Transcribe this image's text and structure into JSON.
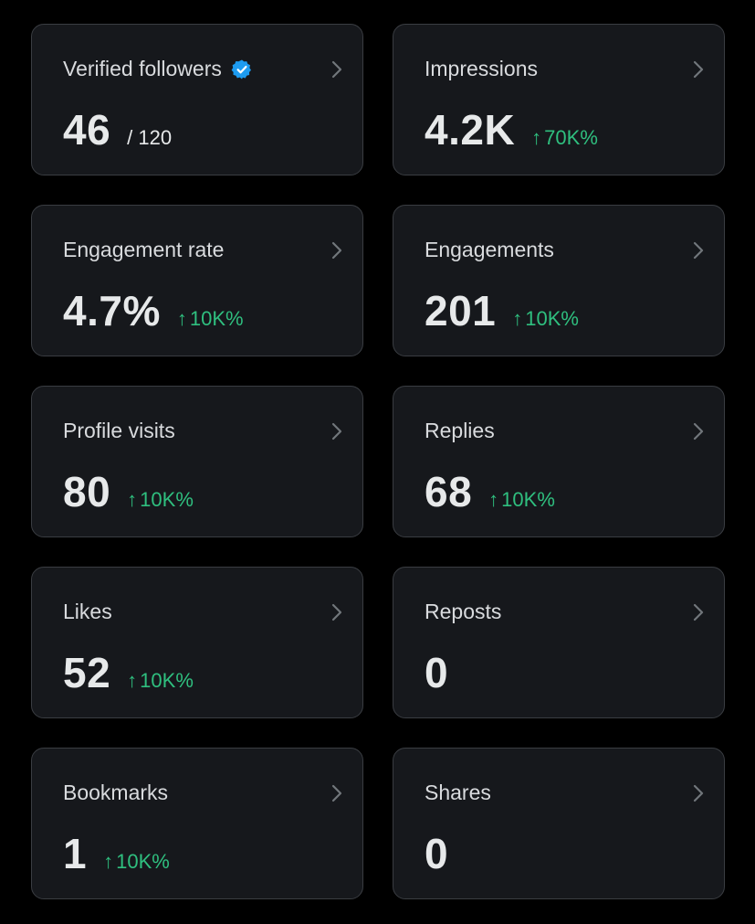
{
  "colors": {
    "background": "#000000",
    "card": "#16181c",
    "card_border": "#3a3d42",
    "text_primary": "#e7e9ea",
    "text_secondary": "#d9dbde",
    "positive": "#2fbf7f",
    "verified": "#1d9bf0"
  },
  "cards": [
    {
      "id": "verified-followers",
      "title": "Verified followers",
      "value": "46",
      "denominator": "/ 120",
      "delta": "",
      "icon": "verified-badge-icon"
    },
    {
      "id": "impressions",
      "title": "Impressions",
      "value": "4.2K",
      "denominator": "",
      "delta": "70K%"
    },
    {
      "id": "engagement-rate",
      "title": "Engagement rate",
      "value": "4.7%",
      "denominator": "",
      "delta": "10K%"
    },
    {
      "id": "engagements",
      "title": "Engagements",
      "value": "201",
      "denominator": "",
      "delta": "10K%"
    },
    {
      "id": "profile-visits",
      "title": "Profile visits",
      "value": "80",
      "denominator": "",
      "delta": "10K%"
    },
    {
      "id": "replies",
      "title": "Replies",
      "value": "68",
      "denominator": "",
      "delta": "10K%"
    },
    {
      "id": "likes",
      "title": "Likes",
      "value": "52",
      "denominator": "",
      "delta": "10K%"
    },
    {
      "id": "reposts",
      "title": "Reposts",
      "value": "0",
      "denominator": "",
      "delta": ""
    },
    {
      "id": "bookmarks",
      "title": "Bookmarks",
      "value": "1",
      "denominator": "",
      "delta": "10K%"
    },
    {
      "id": "shares",
      "title": "Shares",
      "value": "0",
      "denominator": "",
      "delta": ""
    }
  ]
}
